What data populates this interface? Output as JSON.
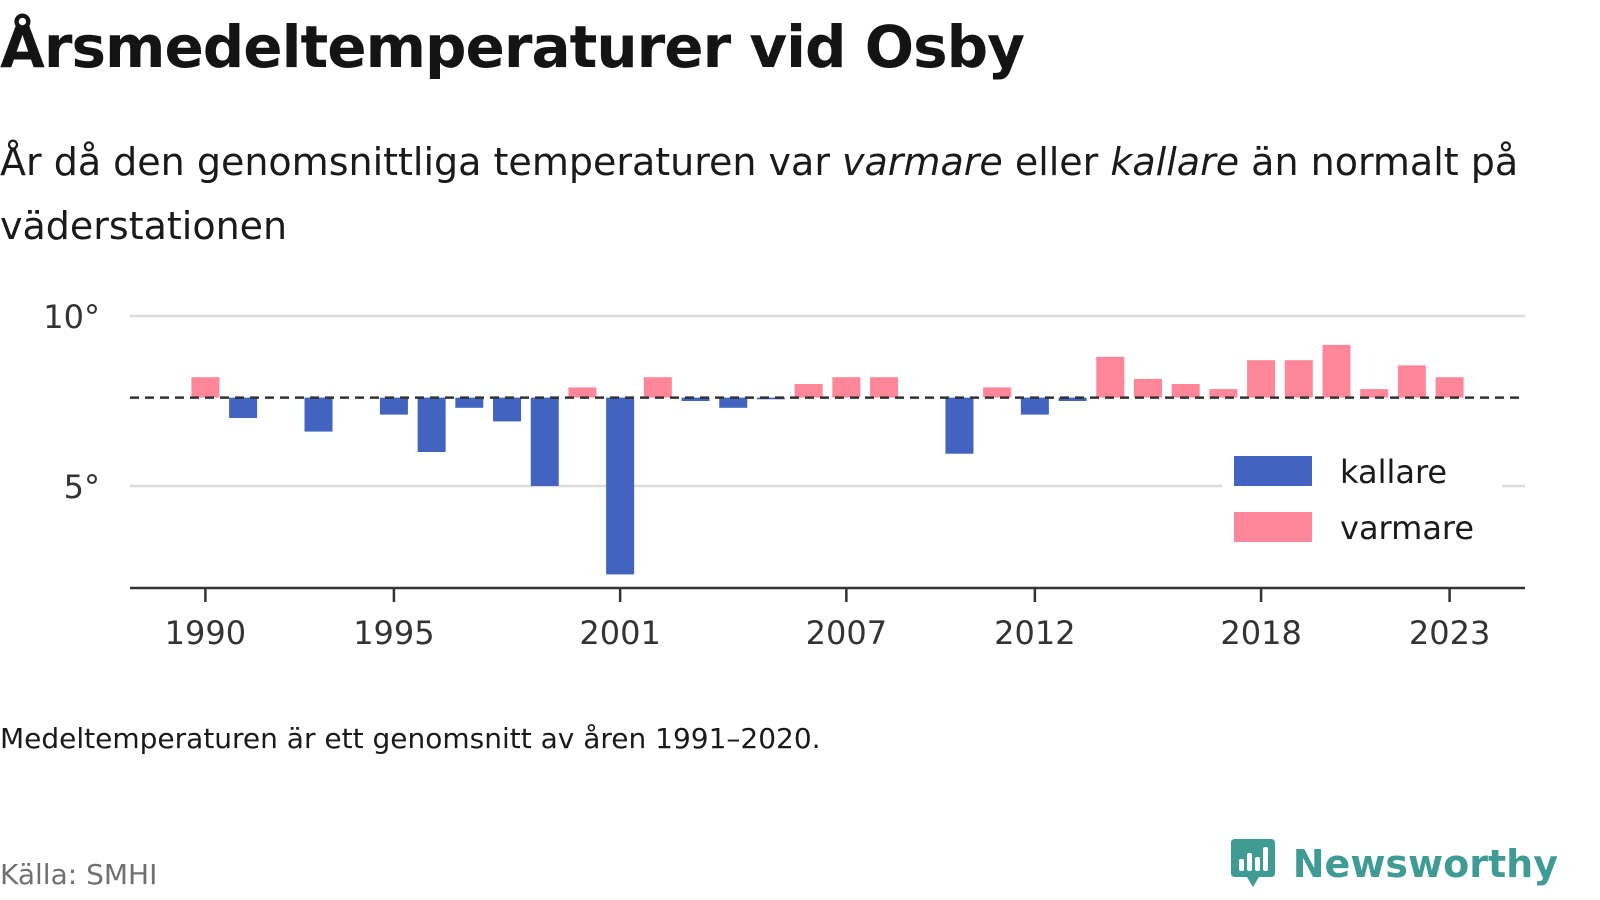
{
  "title": "Årsmedeltemperaturer vid Osby",
  "subtitle": {
    "part1": "År då den genomsnittliga temperaturen var ",
    "warmer_word": "varmare",
    "part2": " eller ",
    "colder_word": "kallare",
    "part3": " än normalt på väderstationen"
  },
  "note": "Medeltemperaturen är ett genomsnitt av åren 1991–2020.",
  "source": "Källa: SMHI",
  "brand": {
    "name": "Newsworthy",
    "logo_icon": "newsworthy-chart-logo-icon"
  },
  "colors": {
    "colder": "#4263c0",
    "warmer": "#ff8799",
    "grid": "#dcdcdc",
    "axis": "#333333",
    "reference_line": "#333333",
    "brand": "#3e9c94"
  },
  "chart_data": {
    "type": "bar",
    "baseline": 7.6,
    "baseline_style": "dashed",
    "ylim": [
      2.0,
      10.0
    ],
    "yticks": [
      {
        "value": 10,
        "label": "10°"
      },
      {
        "value": 5,
        "label": "5°"
      }
    ],
    "xticks": [
      1990,
      1995,
      2001,
      2007,
      2012,
      2018,
      2023
    ],
    "xlim": [
      1988,
      2025
    ],
    "grid": "horizontal",
    "legend": {
      "position": "bottom-right",
      "items": [
        {
          "key": "colder",
          "label": "kallare"
        },
        {
          "key": "warmer",
          "label": "varmare"
        }
      ]
    },
    "x": [
      1990,
      1991,
      1992,
      1993,
      1994,
      1995,
      1996,
      1997,
      1998,
      1999,
      2000,
      2001,
      2002,
      2003,
      2004,
      2005,
      2006,
      2007,
      2008,
      2009,
      2010,
      2011,
      2012,
      2013,
      2014,
      2015,
      2016,
      2017,
      2018,
      2019,
      2020,
      2021,
      2022,
      2023
    ],
    "values": [
      8.2,
      7.0,
      null,
      6.6,
      null,
      7.1,
      6.0,
      7.3,
      6.9,
      5.0,
      7.9,
      2.4,
      8.2,
      7.5,
      7.3,
      7.55,
      8.0,
      8.2,
      8.2,
      null,
      5.95,
      7.9,
      7.1,
      7.5,
      8.8,
      8.15,
      8.0,
      7.85,
      8.7,
      8.7,
      9.15,
      7.85,
      8.55,
      8.2
    ]
  }
}
